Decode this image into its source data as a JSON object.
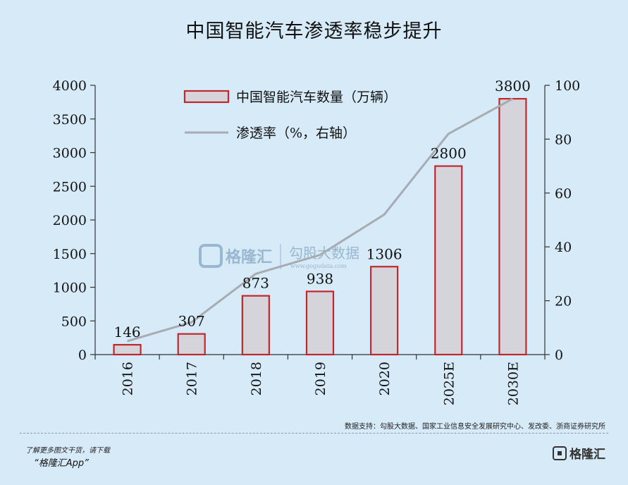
{
  "title": "中国智能汽车渗透率稳步提升",
  "chart_data": {
    "type": "bar",
    "categories": [
      "2016",
      "2017",
      "2018",
      "2019",
      "2020",
      "2025E",
      "2030E"
    ],
    "series": [
      {
        "name": "中国智能汽车数量（万辆）",
        "type": "bar",
        "axis": "left",
        "values": [
          146,
          307,
          873,
          938,
          1306,
          2800,
          3800
        ],
        "data_labels": [
          "146",
          "307",
          "873",
          "938",
          "1306",
          "2800",
          "3800"
        ]
      },
      {
        "name": "渗透率（%，右轴）",
        "type": "line",
        "axis": "right",
        "values": [
          5,
          12,
          30,
          37,
          52,
          82,
          95
        ]
      }
    ],
    "y_left": {
      "lim": [
        0,
        4000
      ],
      "ticks": [
        "0",
        "500",
        "1000",
        "1500",
        "2000",
        "2500",
        "3000",
        "3500",
        "4000"
      ]
    },
    "y_right": {
      "lim": [
        0,
        100
      ],
      "ticks": [
        "0",
        "20",
        "40",
        "60",
        "80",
        "100"
      ]
    },
    "grid": false,
    "legend_placement": "top",
    "colors": {
      "bar_fill": "#d5d4da",
      "bar_stroke": "#c0282d",
      "line": "#a6acb2",
      "axis": "#333333",
      "background": "#d6eaf8"
    }
  },
  "watermark": {
    "brand": "格隆汇",
    "product": "勾股大数据",
    "url": "www.gogudata.com"
  },
  "source": "数据支持：勾股大数据、国家工业信息安全发展研究中心、发改委、浙商证券研究所",
  "footer": {
    "tip": "了解更多图文干货，请下载",
    "app": "“格隆汇App”",
    "logo_text": "格隆汇"
  }
}
